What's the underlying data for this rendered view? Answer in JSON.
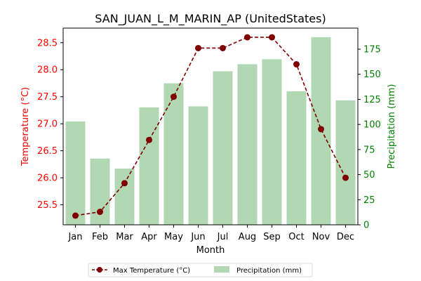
{
  "chart_data": {
    "type": "bar",
    "title": "SAN_JUAN_L_M_MARIN_AP (UnitedStates)",
    "xlabel": "Month",
    "categories": [
      "Jan",
      "Feb",
      "Mar",
      "Apr",
      "May",
      "Jun",
      "Jul",
      "Aug",
      "Sep",
      "Oct",
      "Nov",
      "Dec"
    ],
    "series": [
      {
        "name": "Precipitation (mm)",
        "type": "bar",
        "axis": "right",
        "values": [
          103,
          66,
          56,
          117,
          141,
          118,
          153,
          160,
          165,
          133,
          187,
          124
        ],
        "color": "#b1d8b3"
      },
      {
        "name": "Max Temperature (°C)",
        "type": "line",
        "axis": "left",
        "values": [
          25.3,
          25.37,
          25.9,
          26.7,
          27.5,
          28.4,
          28.4,
          28.6,
          28.6,
          28.1,
          26.9,
          26.0
        ],
        "color": "#800000"
      }
    ],
    "y_left": {
      "label": "Temperature (°C)",
      "range": [
        25.13,
        28.77
      ],
      "ticks": [
        "25.5",
        "26.0",
        "26.5",
        "27.0",
        "27.5",
        "28.0",
        "28.5"
      ],
      "color": "#ff0000"
    },
    "y_right": {
      "label": "Precipitation (mm)",
      "range": [
        0,
        196
      ],
      "ticks": [
        "0",
        "25",
        "50",
        "75",
        "100",
        "125",
        "150",
        "175"
      ],
      "color": "#008000"
    },
    "legend": {
      "placement": "bottom-center",
      "entries": [
        "Max Temperature (°C)",
        "Precipitation (mm)"
      ]
    },
    "grid": false
  }
}
